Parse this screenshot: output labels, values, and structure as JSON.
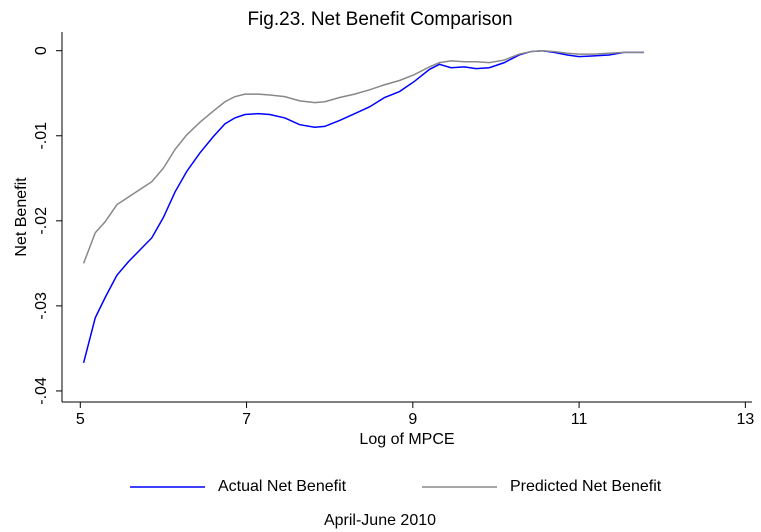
{
  "chart_data": {
    "type": "line",
    "title": "Fig.23. Net Benefit Comparison",
    "x_label": "Log of MPCE",
    "y_label": "Net Benefit",
    "note": "April-June 2010",
    "xlim": [
      4.78,
      13.08
    ],
    "xticks": [
      5,
      7,
      9,
      11,
      13
    ],
    "ylim": [
      -0.0413,
      0.0022
    ],
    "yticks": [
      {
        "value": -0.04,
        "label": "-.04"
      },
      {
        "value": -0.03,
        "label": "-.03"
      },
      {
        "value": -0.02,
        "label": "-.02"
      },
      {
        "value": -0.01,
        "label": "-.01"
      },
      0
    ],
    "grid": false,
    "legend": "bottom",
    "x": [
      5.04,
      5.18,
      5.3,
      5.44,
      5.58,
      5.72,
      5.86,
      6.0,
      6.14,
      6.28,
      6.44,
      6.6,
      6.74,
      6.86,
      6.98,
      7.14,
      7.28,
      7.46,
      7.64,
      7.82,
      7.94,
      8.12,
      8.3,
      8.48,
      8.66,
      8.84,
      9.02,
      9.2,
      9.32,
      9.46,
      9.62,
      9.76,
      9.92,
      10.1,
      10.28,
      10.42,
      10.56,
      10.7,
      10.86,
      11.0,
      11.18,
      11.36,
      11.54,
      11.78
    ],
    "series": [
      {
        "name": "Actual Net Benefit",
        "color": "#0000ff",
        "values": [
          -0.0367,
          -0.0314,
          -0.029,
          -0.0264,
          -0.0248,
          -0.0234,
          -0.022,
          -0.0196,
          -0.0166,
          -0.0142,
          -0.012,
          -0.0101,
          -0.0086,
          -0.0079,
          -0.0075,
          -0.0074,
          -0.0075,
          -0.0079,
          -0.0087,
          -0.009,
          -0.0089,
          -0.0082,
          -0.0074,
          -0.0066,
          -0.0055,
          -0.0048,
          -0.0036,
          -0.0022,
          -0.0016,
          -0.002,
          -0.0019,
          -0.0021,
          -0.002,
          -0.0014,
          -0.0005,
          -0.0001,
          0,
          -0.0002,
          -0.0005,
          -0.0007,
          -0.0006,
          -0.0005,
          -0.0002,
          -0.0002
        ]
      },
      {
        "name": "Predicted Net Benefit",
        "color": "#888888",
        "values": [
          -0.025,
          -0.0214,
          -0.0201,
          -0.0181,
          -0.0172,
          -0.0163,
          -0.0154,
          -0.0138,
          -0.0116,
          -0.0099,
          -0.0084,
          -0.0071,
          -0.006,
          -0.0054,
          -0.0051,
          -0.0051,
          -0.0052,
          -0.0054,
          -0.0059,
          -0.0061,
          -0.006,
          -0.0055,
          -0.0051,
          -0.0046,
          -0.004,
          -0.0035,
          -0.0028,
          -0.0019,
          -0.0014,
          -0.0012,
          -0.0013,
          -0.0013,
          -0.0014,
          -0.0011,
          -0.0004,
          -0.0001,
          0,
          -0.0001,
          -0.0003,
          -0.0004,
          -0.0004,
          -0.0003,
          -0.0002,
          -0.0002
        ]
      }
    ]
  }
}
